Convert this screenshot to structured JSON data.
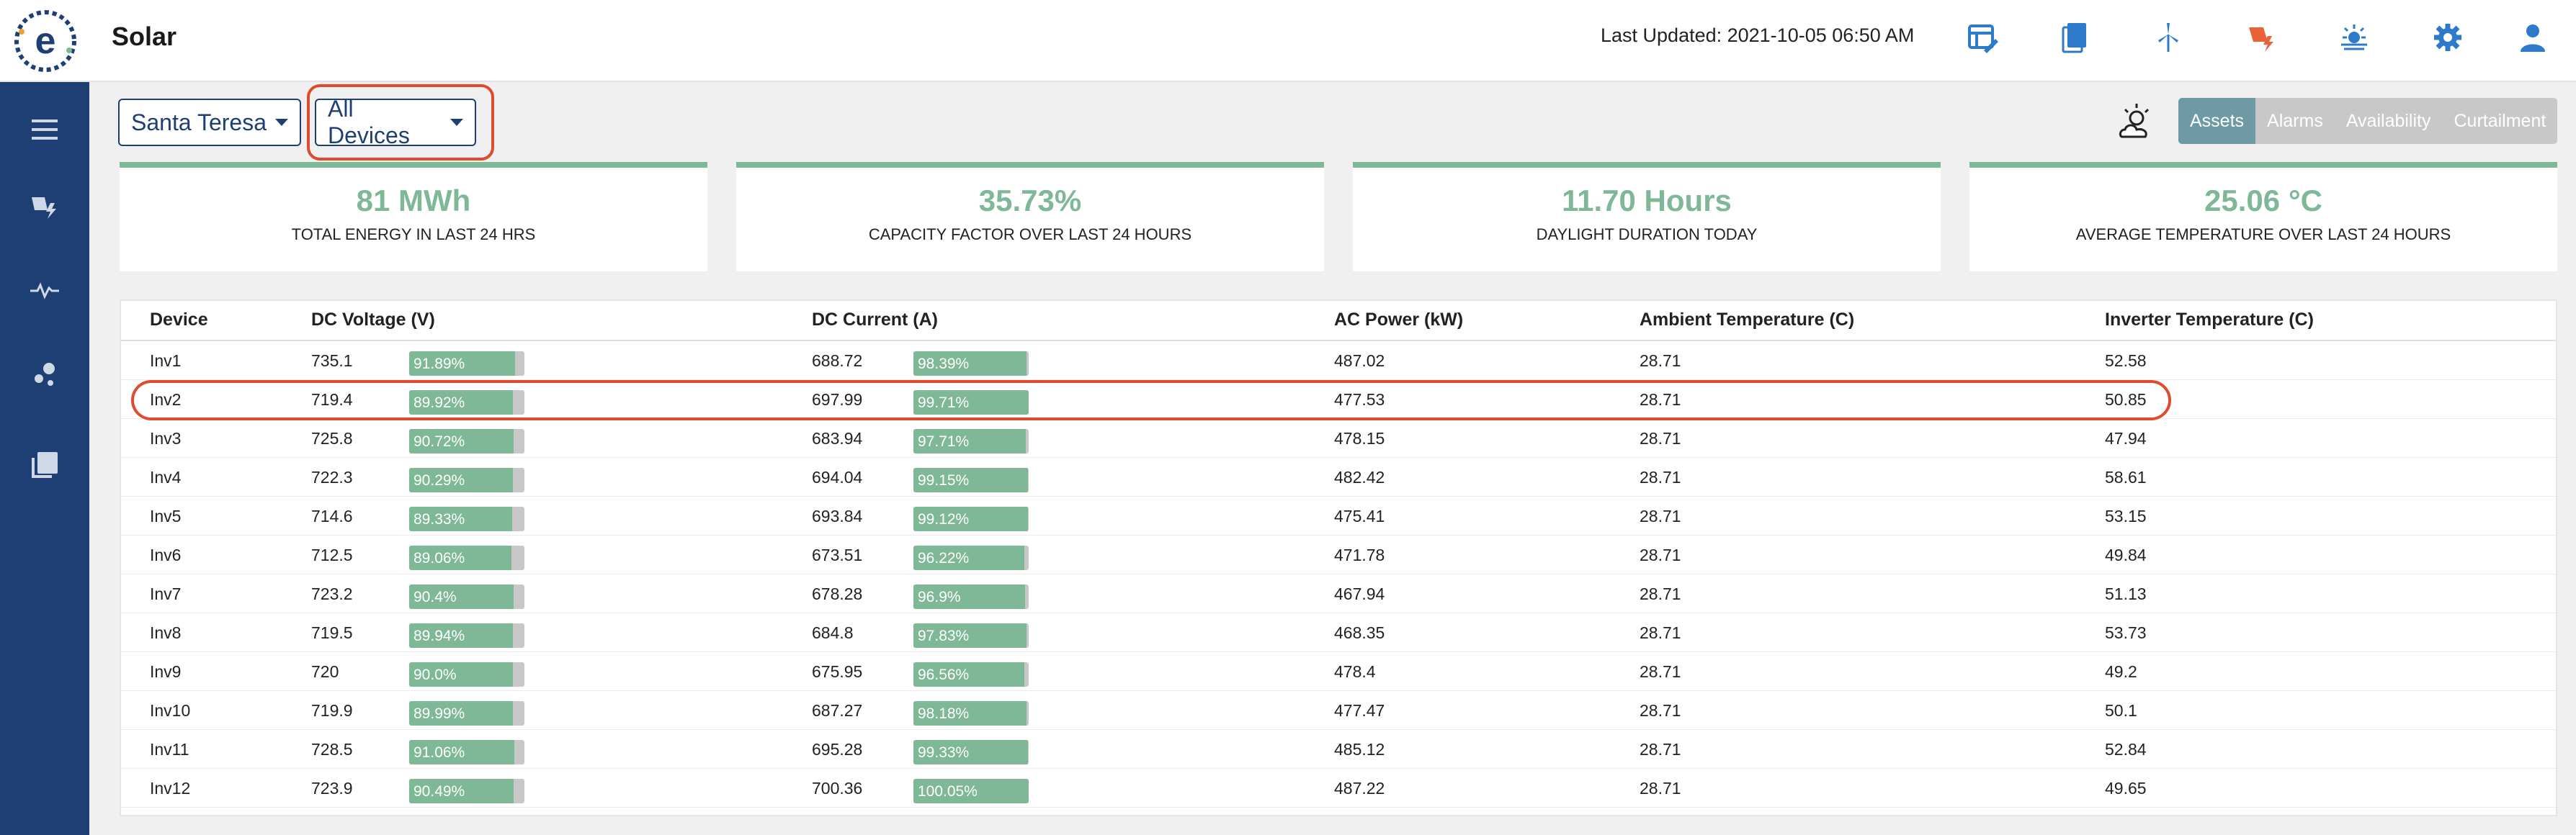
{
  "app": {
    "title": "Solar",
    "last_updated": "Last Updated: 2021-10-05 06:50 AM"
  },
  "header_icons": [
    "dashboard-edit-icon",
    "documents-icon",
    "wind-turbine-icon",
    "solar-alert-icon",
    "sunrise-icon",
    "settings-icon",
    "user-icon"
  ],
  "sidebar_icons": [
    "menu-icon",
    "solar-nav-icon",
    "pulse-icon",
    "scatter-icon",
    "library-icon"
  ],
  "controls": {
    "site_label": "Santa Teresa",
    "device_label": "All Devices",
    "segments": [
      "Assets",
      "Alarms",
      "Availability",
      "Curtailment"
    ],
    "active_segment": "Assets"
  },
  "kpis": [
    {
      "value": "81 MWh",
      "label": "TOTAL ENERGY IN LAST 24 HRS"
    },
    {
      "value": "35.73%",
      "label": "CAPACITY FACTOR OVER LAST 24 HOURS"
    },
    {
      "value": "11.70 Hours",
      "label": "DAYLIGHT DURATION TODAY"
    },
    {
      "value": "25.06 °C",
      "label": "AVERAGE TEMPERATURE OVER LAST 24 HOURS"
    }
  ],
  "table": {
    "headers": {
      "device": "Device",
      "dc_voltage": "DC Voltage (V)",
      "dc_current": "DC Current (A)",
      "ac_power": "AC Power (kW)",
      "ambient": "Ambient Temperature (C)",
      "inverter": "Inverter Temperature (C)"
    },
    "rows": [
      {
        "device": "Inv1",
        "v": "735.1",
        "v_pct": "91.89%",
        "i": "688.72",
        "i_pct": "98.39%",
        "ac": "487.02",
        "amb": "28.71",
        "inv": "52.58"
      },
      {
        "device": "Inv2",
        "v": "719.4",
        "v_pct": "89.92%",
        "i": "697.99",
        "i_pct": "99.71%",
        "ac": "477.53",
        "amb": "28.71",
        "inv": "50.85"
      },
      {
        "device": "Inv3",
        "v": "725.8",
        "v_pct": "90.72%",
        "i": "683.94",
        "i_pct": "97.71%",
        "ac": "478.15",
        "amb": "28.71",
        "inv": "47.94"
      },
      {
        "device": "Inv4",
        "v": "722.3",
        "v_pct": "90.29%",
        "i": "694.04",
        "i_pct": "99.15%",
        "ac": "482.42",
        "amb": "28.71",
        "inv": "58.61"
      },
      {
        "device": "Inv5",
        "v": "714.6",
        "v_pct": "89.33%",
        "i": "693.84",
        "i_pct": "99.12%",
        "ac": "475.41",
        "amb": "28.71",
        "inv": "53.15"
      },
      {
        "device": "Inv6",
        "v": "712.5",
        "v_pct": "89.06%",
        "i": "673.51",
        "i_pct": "96.22%",
        "ac": "471.78",
        "amb": "28.71",
        "inv": "49.84"
      },
      {
        "device": "Inv7",
        "v": "723.2",
        "v_pct": "90.4%",
        "i": "678.28",
        "i_pct": "96.9%",
        "ac": "467.94",
        "amb": "28.71",
        "inv": "51.13"
      },
      {
        "device": "Inv8",
        "v": "719.5",
        "v_pct": "89.94%",
        "i": "684.8",
        "i_pct": "97.83%",
        "ac": "468.35",
        "amb": "28.71",
        "inv": "53.73"
      },
      {
        "device": "Inv9",
        "v": "720",
        "v_pct": "90.0%",
        "i": "675.95",
        "i_pct": "96.56%",
        "ac": "478.4",
        "amb": "28.71",
        "inv": "49.2"
      },
      {
        "device": "Inv10",
        "v": "719.9",
        "v_pct": "89.99%",
        "i": "687.27",
        "i_pct": "98.18%",
        "ac": "477.47",
        "amb": "28.71",
        "inv": "50.1"
      },
      {
        "device": "Inv11",
        "v": "728.5",
        "v_pct": "91.06%",
        "i": "695.28",
        "i_pct": "99.33%",
        "ac": "485.12",
        "amb": "28.71",
        "inv": "52.84"
      },
      {
        "device": "Inv12",
        "v": "723.9",
        "v_pct": "90.49%",
        "i": "700.36",
        "i_pct": "100.05%",
        "ac": "487.22",
        "amb": "28.71",
        "inv": "49.65"
      }
    ]
  },
  "colors": {
    "sidebar": "#1e3f73",
    "accent_green": "#7fb896",
    "highlight_red": "#e04a2e",
    "active_segment": "#6d9aa5",
    "icon_blue": "#2c7ac9",
    "icon_orange": "#e8623a"
  }
}
